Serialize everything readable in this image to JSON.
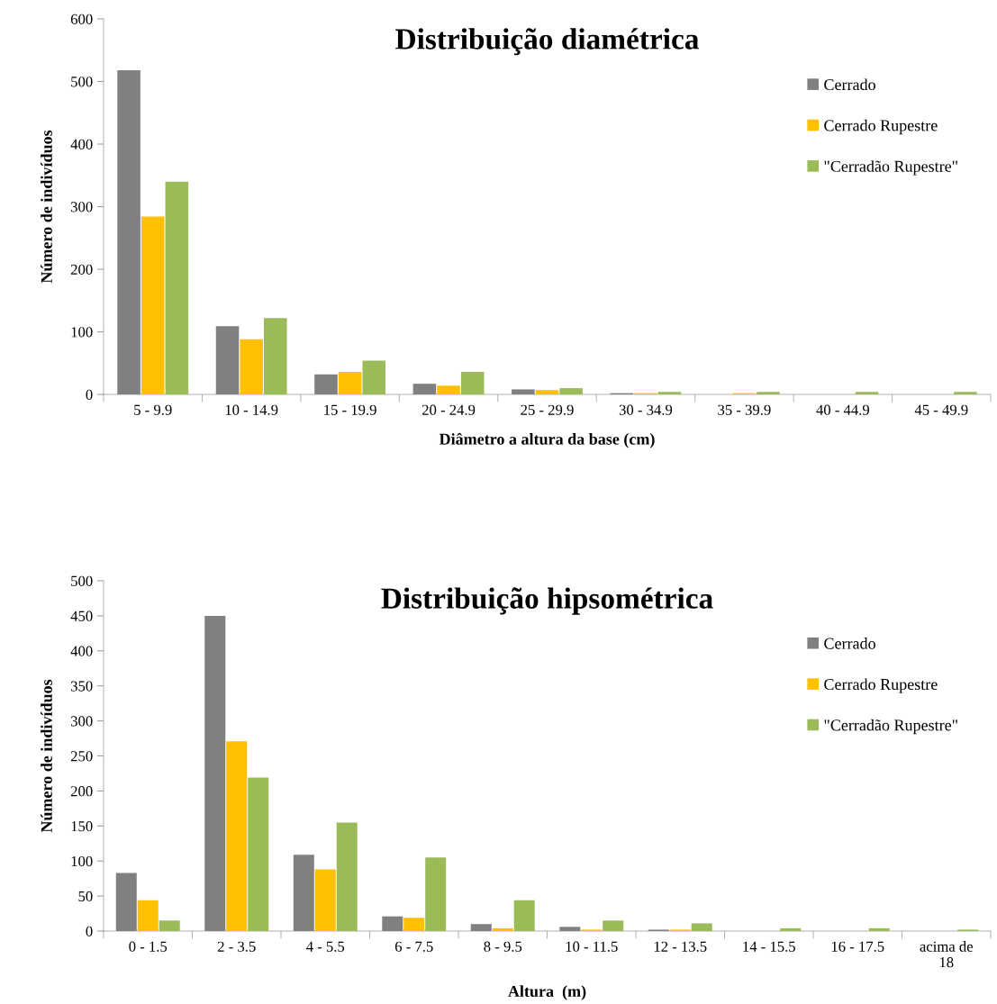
{
  "chart_data": [
    {
      "type": "bar",
      "title": "Distribuição diamétrica",
      "xlabel": "Diâmetro a altura da base (cm)",
      "ylabel": "Número de indivíduos",
      "categories": [
        "5 - 9.9",
        "10 - 14.9",
        "15 - 19.9",
        "20 - 24.9",
        "25 - 29.9",
        "30 - 34.9",
        "35 - 39.9",
        "40 - 44.9",
        "45 - 49.9"
      ],
      "series": [
        {
          "name": "Cerrado",
          "color": "#808080",
          "values": [
            518,
            109,
            32,
            17,
            8,
            2,
            0,
            0,
            0
          ]
        },
        {
          "name": "Cerrado Rupestre",
          "color": "#ffc000",
          "values": [
            284,
            88,
            36,
            14,
            7,
            2,
            2,
            0,
            0
          ]
        },
        {
          "name": "\"Cerradão Rupestre\"",
          "color": "#9bbb59",
          "values": [
            340,
            122,
            54,
            36,
            10,
            4,
            4,
            4,
            4
          ]
        }
      ],
      "ylim": [
        0,
        600
      ],
      "yticks": [
        0,
        100,
        200,
        300,
        400,
        500,
        600
      ],
      "grid": false,
      "legend": "top right"
    },
    {
      "type": "bar",
      "title": "Distribuição hipsométrica",
      "xlabel": "Altura  (m)",
      "ylabel": "Número de indivíduos",
      "categories": [
        "0 - 1.5",
        "2 - 3.5",
        "4 - 5.5",
        "6 - 7.5",
        "8 - 9.5",
        "10 - 11.5",
        "12 - 13.5",
        "14 - 15.5",
        "16 - 17.5",
        "acima de\n18"
      ],
      "series": [
        {
          "name": "Cerrado",
          "color": "#808080",
          "values": [
            83,
            450,
            109,
            21,
            10,
            6,
            2,
            0,
            0,
            0
          ]
        },
        {
          "name": "Cerrado Rupestre",
          "color": "#ffc000",
          "values": [
            44,
            271,
            88,
            19,
            4,
            2,
            2,
            0,
            0,
            0
          ]
        },
        {
          "name": "\"Cerradão Rupestre\"",
          "color": "#9bbb59",
          "values": [
            15,
            219,
            155,
            105,
            44,
            15,
            11,
            4,
            4,
            2
          ]
        }
      ],
      "ylim": [
        0,
        500
      ],
      "yticks": [
        0,
        50,
        100,
        150,
        200,
        250,
        300,
        350,
        400,
        450,
        500
      ],
      "grid": false,
      "legend": "top right"
    }
  ]
}
